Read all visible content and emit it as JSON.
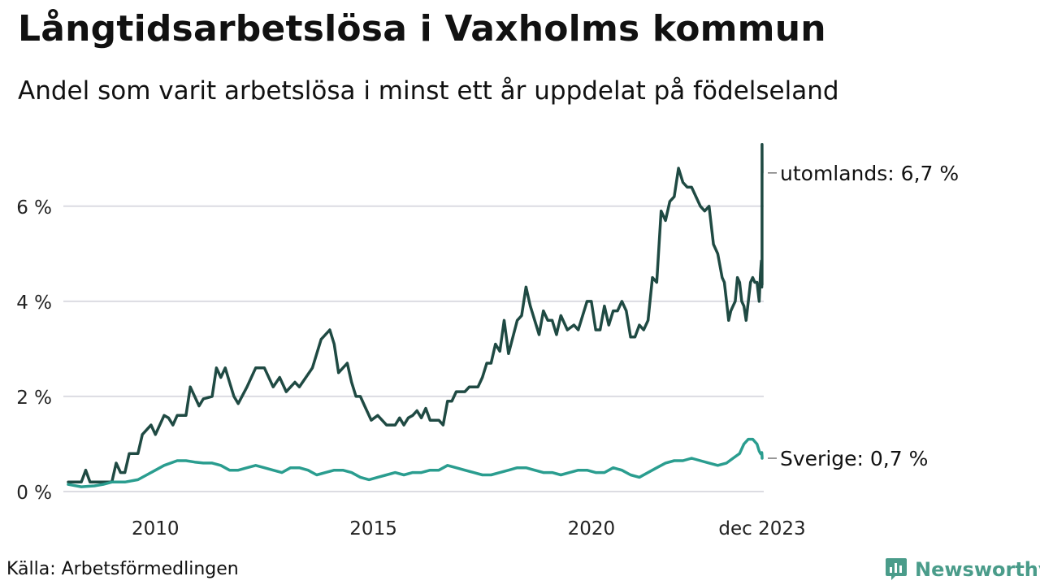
{
  "title": "Långtidsarbetslösa i Vaxholms kommun",
  "subtitle": "Andel som varit arbetslösa i minst ett år uppdelat på födelseland",
  "source": "Källa: Arbetsförmedlingen",
  "brand": {
    "name": "Newsworthy",
    "icon": "bar-chart-icon",
    "color": "#4a9c8a"
  },
  "colors": {
    "utomlands": "#1f4a43",
    "sverige": "#2a9d8f",
    "grid": "#dcdce2",
    "leader": "#777777"
  },
  "chart_data": {
    "type": "line",
    "title": "Långtidsarbetslösa i Vaxholms kommun",
    "xlabel": "",
    "ylabel": "",
    "x_range": [
      2008.0,
      2023.917
    ],
    "ylim": [
      0,
      7.5
    ],
    "yticks": [
      0,
      2,
      4,
      6
    ],
    "ytick_labels": [
      "0 %",
      "2 %",
      "4 %",
      "6 %"
    ],
    "xticks": [
      2010,
      2015,
      2020,
      2023.917
    ],
    "xtick_labels": [
      "2010",
      "2015",
      "2020",
      "dec 2023"
    ],
    "grid": true,
    "series": [
      {
        "name": "utomlands",
        "label": "utomlands: 6,7 %",
        "points": [
          [
            2008.0,
            0.2
          ],
          [
            2008.3,
            0.2
          ],
          [
            2008.4,
            0.45
          ],
          [
            2008.5,
            0.2
          ],
          [
            2008.8,
            0.2
          ],
          [
            2009.0,
            0.2
          ],
          [
            2009.1,
            0.6
          ],
          [
            2009.2,
            0.4
          ],
          [
            2009.3,
            0.4
          ],
          [
            2009.4,
            0.8
          ],
          [
            2009.6,
            0.8
          ],
          [
            2009.7,
            1.2
          ],
          [
            2009.9,
            1.4
          ],
          [
            2010.0,
            1.2
          ],
          [
            2010.2,
            1.6
          ],
          [
            2010.3,
            1.55
          ],
          [
            2010.4,
            1.4
          ],
          [
            2010.5,
            1.6
          ],
          [
            2010.7,
            1.6
          ],
          [
            2010.8,
            2.2
          ],
          [
            2011.0,
            1.8
          ],
          [
            2011.1,
            1.95
          ],
          [
            2011.3,
            2.0
          ],
          [
            2011.4,
            2.6
          ],
          [
            2011.5,
            2.4
          ],
          [
            2011.6,
            2.6
          ],
          [
            2011.7,
            2.3
          ],
          [
            2011.8,
            2.0
          ],
          [
            2011.9,
            1.85
          ],
          [
            2012.1,
            2.2
          ],
          [
            2012.3,
            2.6
          ],
          [
            2012.5,
            2.6
          ],
          [
            2012.7,
            2.2
          ],
          [
            2012.85,
            2.4
          ],
          [
            2013.0,
            2.1
          ],
          [
            2013.2,
            2.3
          ],
          [
            2013.3,
            2.2
          ],
          [
            2013.6,
            2.6
          ],
          [
            2013.8,
            3.2
          ],
          [
            2014.0,
            3.4
          ],
          [
            2014.1,
            3.1
          ],
          [
            2014.2,
            2.5
          ],
          [
            2014.4,
            2.7
          ],
          [
            2014.5,
            2.3
          ],
          [
            2014.6,
            2.0
          ],
          [
            2014.7,
            2.0
          ],
          [
            2014.8,
            1.8
          ],
          [
            2014.95,
            1.5
          ],
          [
            2015.1,
            1.6
          ],
          [
            2015.3,
            1.4
          ],
          [
            2015.5,
            1.4
          ],
          [
            2015.6,
            1.55
          ],
          [
            2015.7,
            1.4
          ],
          [
            2015.8,
            1.55
          ],
          [
            2015.9,
            1.6
          ],
          [
            2016.0,
            1.7
          ],
          [
            2016.1,
            1.55
          ],
          [
            2016.2,
            1.75
          ],
          [
            2016.3,
            1.5
          ],
          [
            2016.5,
            1.5
          ],
          [
            2016.6,
            1.4
          ],
          [
            2016.7,
            1.9
          ],
          [
            2016.8,
            1.9
          ],
          [
            2016.9,
            2.1
          ],
          [
            2017.1,
            2.1
          ],
          [
            2017.2,
            2.2
          ],
          [
            2017.4,
            2.2
          ],
          [
            2017.5,
            2.4
          ],
          [
            2017.6,
            2.7
          ],
          [
            2017.7,
            2.7
          ],
          [
            2017.8,
            3.1
          ],
          [
            2017.9,
            2.95
          ],
          [
            2018.0,
            3.6
          ],
          [
            2018.1,
            2.9
          ],
          [
            2018.3,
            3.6
          ],
          [
            2018.4,
            3.7
          ],
          [
            2018.5,
            4.3
          ],
          [
            2018.6,
            3.9
          ],
          [
            2018.7,
            3.6
          ],
          [
            2018.8,
            3.3
          ],
          [
            2018.9,
            3.8
          ],
          [
            2019.0,
            3.6
          ],
          [
            2019.1,
            3.6
          ],
          [
            2019.2,
            3.3
          ],
          [
            2019.3,
            3.7
          ],
          [
            2019.45,
            3.4
          ],
          [
            2019.6,
            3.5
          ],
          [
            2019.7,
            3.4
          ],
          [
            2019.9,
            4.0
          ],
          [
            2020.0,
            4.0
          ],
          [
            2020.1,
            3.4
          ],
          [
            2020.2,
            3.4
          ],
          [
            2020.3,
            3.9
          ],
          [
            2020.4,
            3.5
          ],
          [
            2020.5,
            3.8
          ],
          [
            2020.6,
            3.8
          ],
          [
            2020.7,
            4.0
          ],
          [
            2020.8,
            3.8
          ],
          [
            2020.9,
            3.25
          ],
          [
            2021.0,
            3.25
          ],
          [
            2021.1,
            3.5
          ],
          [
            2021.2,
            3.4
          ],
          [
            2021.3,
            3.6
          ],
          [
            2021.4,
            4.5
          ],
          [
            2021.5,
            4.4
          ],
          [
            2021.6,
            5.9
          ],
          [
            2021.7,
            5.7
          ],
          [
            2021.8,
            6.1
          ],
          [
            2021.9,
            6.2
          ],
          [
            2022.0,
            6.8
          ],
          [
            2022.1,
            6.5
          ],
          [
            2022.2,
            6.4
          ],
          [
            2022.3,
            6.4
          ],
          [
            2022.4,
            6.2
          ],
          [
            2022.5,
            6.0
          ],
          [
            2022.6,
            5.9
          ],
          [
            2022.7,
            6.0
          ],
          [
            2022.8,
            5.2
          ],
          [
            2022.9,
            5.0
          ],
          [
            2023.0,
            4.5
          ],
          [
            2023.05,
            4.4
          ],
          [
            2023.1,
            4.0
          ],
          [
            2023.15,
            3.6
          ],
          [
            2023.2,
            3.8
          ],
          [
            2023.25,
            3.9
          ],
          [
            2023.3,
            4.0
          ],
          [
            2023.35,
            4.5
          ],
          [
            2023.4,
            4.4
          ],
          [
            2023.45,
            4.0
          ],
          [
            2023.5,
            3.9
          ],
          [
            2023.55,
            3.6
          ],
          [
            2023.6,
            4.0
          ],
          [
            2023.65,
            4.4
          ],
          [
            2023.7,
            4.5
          ],
          [
            2023.75,
            4.4
          ],
          [
            2023.8,
            4.4
          ],
          [
            2023.85,
            4.0
          ],
          [
            2023.88,
            4.6
          ],
          [
            2023.9,
            4.85
          ],
          [
            2023.91,
            4.3
          ],
          [
            2023.913,
            4.7
          ],
          [
            2023.915,
            4.35
          ],
          [
            2023.916,
            7.3
          ],
          [
            2023.917,
            6.7
          ]
        ]
      },
      {
        "name": "sverige",
        "label": "Sverige: 0,7 %",
        "points": [
          [
            2008.0,
            0.15
          ],
          [
            2008.3,
            0.1
          ],
          [
            2008.6,
            0.12
          ],
          [
            2008.8,
            0.15
          ],
          [
            2009.0,
            0.2
          ],
          [
            2009.3,
            0.2
          ],
          [
            2009.6,
            0.25
          ],
          [
            2009.8,
            0.35
          ],
          [
            2010.0,
            0.45
          ],
          [
            2010.2,
            0.55
          ],
          [
            2010.5,
            0.65
          ],
          [
            2010.7,
            0.65
          ],
          [
            2010.9,
            0.62
          ],
          [
            2011.1,
            0.6
          ],
          [
            2011.3,
            0.6
          ],
          [
            2011.5,
            0.55
          ],
          [
            2011.7,
            0.45
          ],
          [
            2011.9,
            0.45
          ],
          [
            2012.1,
            0.5
          ],
          [
            2012.3,
            0.55
          ],
          [
            2012.5,
            0.5
          ],
          [
            2012.7,
            0.45
          ],
          [
            2012.9,
            0.4
          ],
          [
            2013.1,
            0.5
          ],
          [
            2013.3,
            0.5
          ],
          [
            2013.5,
            0.45
          ],
          [
            2013.7,
            0.35
          ],
          [
            2013.9,
            0.4
          ],
          [
            2014.1,
            0.45
          ],
          [
            2014.3,
            0.45
          ],
          [
            2014.5,
            0.4
          ],
          [
            2014.7,
            0.3
          ],
          [
            2014.9,
            0.25
          ],
          [
            2015.1,
            0.3
          ],
          [
            2015.3,
            0.35
          ],
          [
            2015.5,
            0.4
          ],
          [
            2015.7,
            0.35
          ],
          [
            2015.9,
            0.4
          ],
          [
            2016.1,
            0.4
          ],
          [
            2016.3,
            0.45
          ],
          [
            2016.5,
            0.45
          ],
          [
            2016.7,
            0.55
          ],
          [
            2016.9,
            0.5
          ],
          [
            2017.1,
            0.45
          ],
          [
            2017.3,
            0.4
          ],
          [
            2017.5,
            0.35
          ],
          [
            2017.7,
            0.35
          ],
          [
            2017.9,
            0.4
          ],
          [
            2018.1,
            0.45
          ],
          [
            2018.3,
            0.5
          ],
          [
            2018.5,
            0.5
          ],
          [
            2018.7,
            0.45
          ],
          [
            2018.9,
            0.4
          ],
          [
            2019.1,
            0.4
          ],
          [
            2019.3,
            0.35
          ],
          [
            2019.5,
            0.4
          ],
          [
            2019.7,
            0.45
          ],
          [
            2019.9,
            0.45
          ],
          [
            2020.1,
            0.4
          ],
          [
            2020.3,
            0.4
          ],
          [
            2020.5,
            0.5
          ],
          [
            2020.7,
            0.45
          ],
          [
            2020.9,
            0.35
          ],
          [
            2021.1,
            0.3
          ],
          [
            2021.3,
            0.4
          ],
          [
            2021.5,
            0.5
          ],
          [
            2021.7,
            0.6
          ],
          [
            2021.9,
            0.65
          ],
          [
            2022.1,
            0.65
          ],
          [
            2022.3,
            0.7
          ],
          [
            2022.5,
            0.65
          ],
          [
            2022.7,
            0.6
          ],
          [
            2022.9,
            0.55
          ],
          [
            2023.1,
            0.6
          ],
          [
            2023.25,
            0.7
          ],
          [
            2023.4,
            0.8
          ],
          [
            2023.5,
            1.0
          ],
          [
            2023.6,
            1.1
          ],
          [
            2023.7,
            1.1
          ],
          [
            2023.8,
            1.0
          ],
          [
            2023.85,
            0.85
          ],
          [
            2023.88,
            0.8
          ],
          [
            2023.9,
            0.78
          ],
          [
            2023.91,
            0.82
          ],
          [
            2023.915,
            0.75
          ],
          [
            2023.917,
            0.7
          ]
        ]
      }
    ]
  }
}
